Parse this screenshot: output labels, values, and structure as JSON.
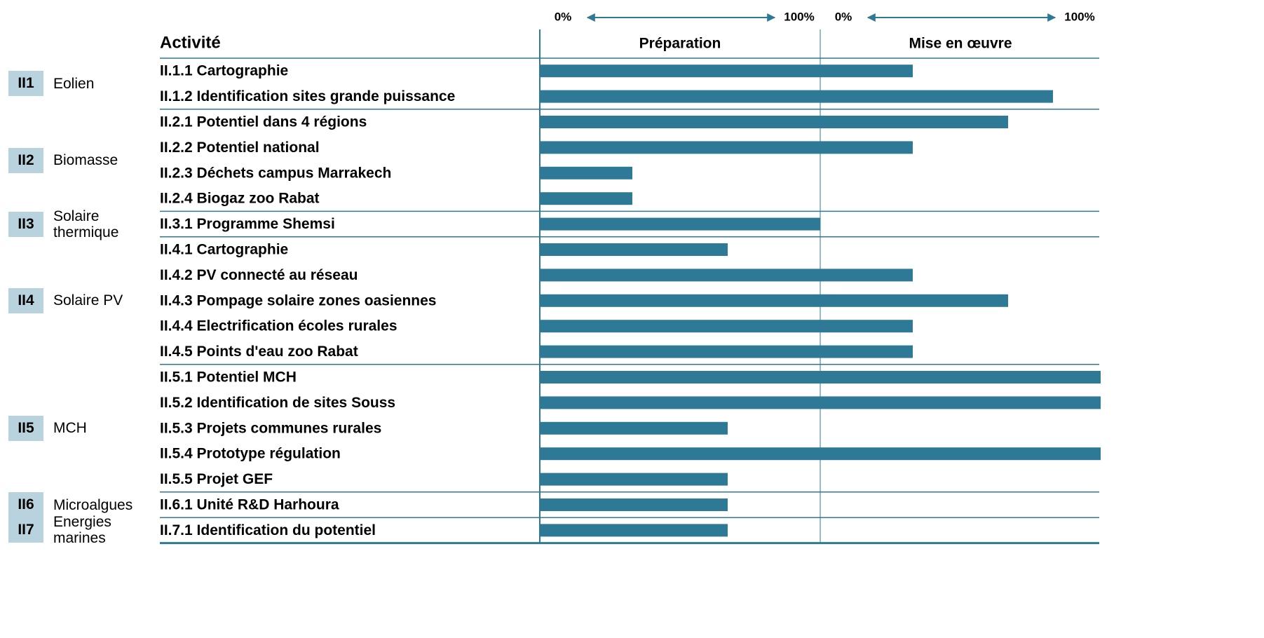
{
  "chart_data": {
    "type": "bar",
    "header": "Activité",
    "xlim": [
      0,
      100
    ],
    "xticks": [
      {
        "value": 0,
        "label": "0%"
      },
      {
        "value": 100,
        "label": "100%"
      }
    ],
    "groups": [
      {
        "code": "II1",
        "name": "Eolien",
        "categories": [
          "II.1.1 Cartographie",
          "II.1.2 Identification sites grande puissance"
        ]
      },
      {
        "code": "II2",
        "name": "Biomasse",
        "categories": [
          "II.2.1 Potentiel dans 4 régions",
          "II.2.2 Potentiel national",
          "II.2.3 Déchets campus Marrakech",
          "II.2.4 Biogaz zoo Rabat"
        ]
      },
      {
        "code": "II3",
        "name": "Solaire thermique",
        "categories": [
          "II.3.1 Programme Shemsi"
        ]
      },
      {
        "code": "II4",
        "name": "Solaire PV",
        "categories": [
          "II.4.1 Cartographie",
          "II.4.2 PV connecté au réseau",
          "II.4.3 Pompage solaire zones oasiennes",
          "II.4.4 Electrification écoles rurales",
          "II.4.5 Points d'eau zoo Rabat"
        ]
      },
      {
        "code": "II5",
        "name": "MCH",
        "categories": [
          "II.5.1 Potentiel MCH",
          "II.5.2 Identification de sites Souss",
          "II.5.3 Projets communes rurales",
          "II.5.4 Prototype régulation",
          "II.5.5 Projet GEF"
        ]
      },
      {
        "code": "II6",
        "name": "Microalgues",
        "categories": [
          "II.6.1 Unité R&D Harhoura"
        ]
      },
      {
        "code": "II7",
        "name": "Energies marines",
        "categories": [
          "II.7.1 Identification du potentiel"
        ]
      }
    ],
    "series": [
      {
        "name": "Préparation",
        "color": "#2e7a96",
        "values": [
          100,
          100,
          100,
          100,
          33,
          33,
          100,
          67,
          100,
          100,
          100,
          100,
          100,
          100,
          67,
          100,
          67,
          67,
          67
        ]
      },
      {
        "name": "Mise en œuvre",
        "color": "#2e7a96",
        "values": [
          33,
          83,
          67,
          33,
          0,
          0,
          0,
          0,
          33,
          67,
          33,
          33,
          100,
          100,
          0,
          100,
          0,
          0,
          0
        ]
      }
    ]
  }
}
